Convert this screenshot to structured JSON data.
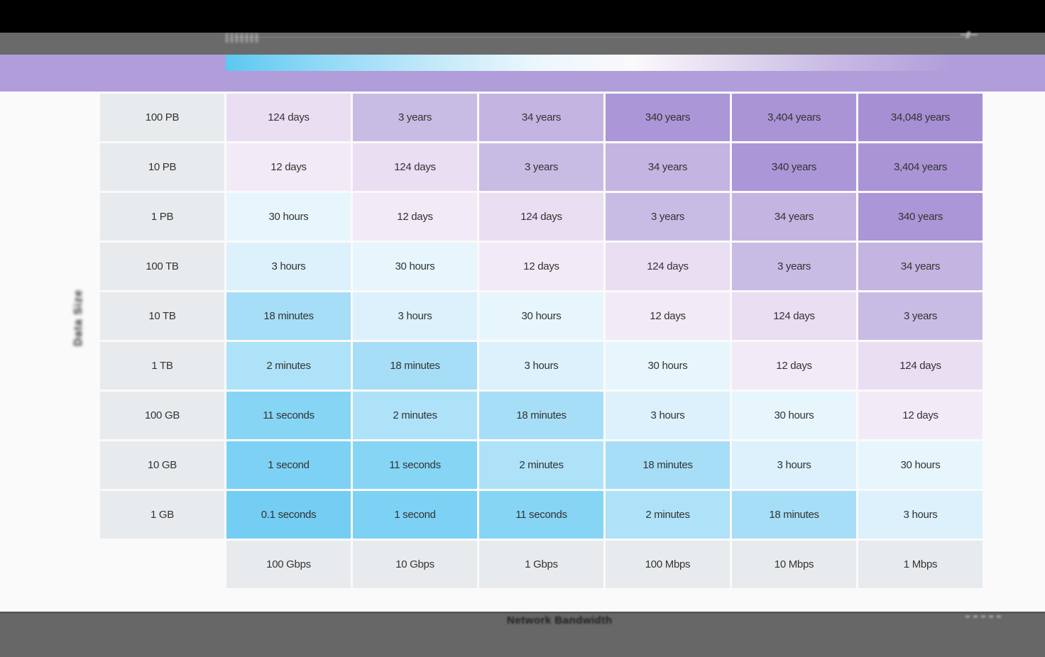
{
  "colors": {
    "page-bg": "#fafafa",
    "top-bar": "#000000",
    "toolbar-bg": "#6a6a6a",
    "band-purple": "#b09dda",
    "legend-start": "#5cc8f1",
    "header-cell-bg": "#e7ebee",
    "cell-text": "#333333",
    "footer-bg": "#676767",
    "footer-edge": "#585858",
    "axis-label-color": "#2b2b2b"
  },
  "chart_data": {
    "type": "heatmap",
    "xlabel": "Network Bandwidth",
    "ylabel": "Data Size",
    "legend_position": "top gradient bar, fast (blue) to slow (purple)",
    "grid": false,
    "columns": [
      "100 Gbps",
      "10 Gbps",
      "1 Gbps",
      "100 Mbps",
      "10 Mbps",
      "1 Mbps"
    ],
    "rows": [
      "100 PB",
      "10 PB",
      "1 PB",
      "100 TB",
      "10 TB",
      "1 TB",
      "100 GB",
      "10 GB",
      "1 GB"
    ],
    "values": [
      [
        "124 days",
        "3 years",
        "34 years",
        "340 years",
        "3,404 years",
        "34,048 years"
      ],
      [
        "12 days",
        "124 days",
        "3 years",
        "34 years",
        "340 years",
        "3,404 years"
      ],
      [
        "30 hours",
        "12 days",
        "124 days",
        "3 years",
        "34 years",
        "340 years"
      ],
      [
        "3 hours",
        "30 hours",
        "12 days",
        "124 days",
        "3 years",
        "34 years"
      ],
      [
        "18 minutes",
        "3 hours",
        "30 hours",
        "12 days",
        "124 days",
        "3 years"
      ],
      [
        "2 minutes",
        "18 minutes",
        "3 hours",
        "30 hours",
        "12 days",
        "124 days"
      ],
      [
        "11 seconds",
        "2 minutes",
        "18 minutes",
        "3 hours",
        "30 hours",
        "12 days"
      ],
      [
        "1 second",
        "11 seconds",
        "2 minutes",
        "18 minutes",
        "3 hours",
        "30 hours"
      ],
      [
        "0.1 seconds",
        "1 second",
        "11 seconds",
        "2 minutes",
        "18 minutes",
        "3 hours"
      ]
    ],
    "color_map": {
      "0.1 seconds": "#74cdf3",
      "1 second": "#7dd1f4",
      "11 seconds": "#86d5f5",
      "2 minutes": "#aee2f8",
      "18 minutes": "#a6def7",
      "3 hours": "#dcf1fc",
      "30 hours": "#e7f6fd",
      "12 days": "#f2ebf7",
      "124 days": "#eadef3",
      "3 years": "#c9bce4",
      "34 years": "#c4b4e1",
      "340 years": "#ab96d7",
      "3,404 years": "#aa94d6",
      "34,048 years": "#a78fd4"
    }
  }
}
